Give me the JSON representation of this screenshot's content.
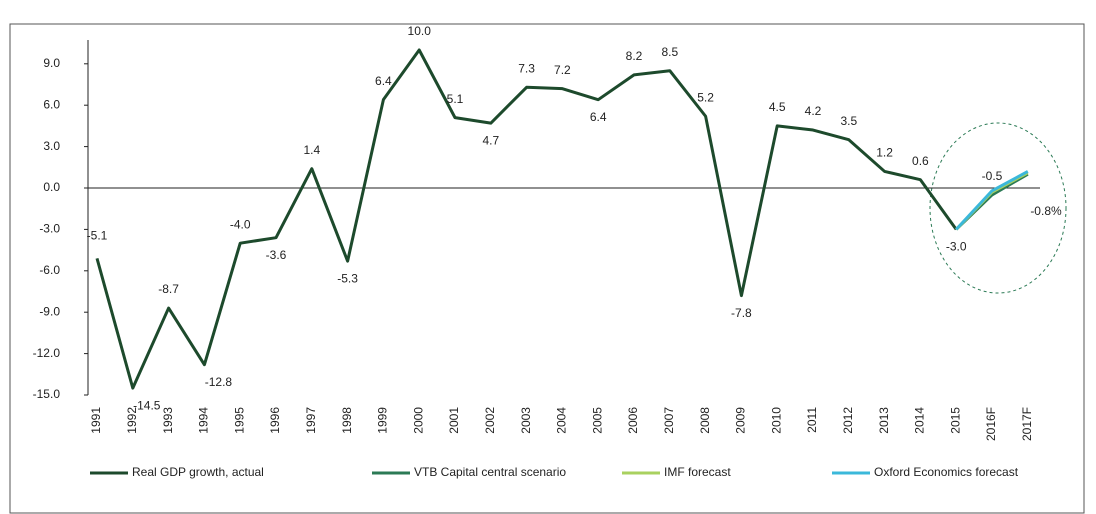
{
  "chart_data": {
    "type": "line",
    "categories": [
      "1991",
      "1992",
      "1993",
      "1994",
      "1995",
      "1996",
      "1997",
      "1998",
      "1999",
      "2000",
      "2001",
      "2002",
      "2003",
      "2004",
      "2005",
      "2006",
      "2007",
      "2008",
      "2009",
      "2010",
      "2011",
      "2012",
      "2013",
      "2014",
      "2015",
      "2016F",
      "2017F"
    ],
    "series": [
      {
        "name": "Real GDP growth, actual",
        "color": "#1d4a2c",
        "values": [
          -5.1,
          -14.5,
          -8.7,
          -12.8,
          -4.0,
          -3.6,
          1.4,
          -5.3,
          6.4,
          10.0,
          5.1,
          4.7,
          7.3,
          7.2,
          6.4,
          8.2,
          8.5,
          5.2,
          -7.8,
          4.5,
          4.2,
          3.5,
          1.2,
          0.6,
          -3.0,
          null,
          null
        ],
        "value_labels": [
          "-5.1",
          "-14.5",
          "-8.7",
          "-12.8",
          "-4.0",
          "-3.6",
          "1.4",
          "-5.3",
          "6.4",
          "10.0",
          "5.1",
          "4.7",
          "7.3",
          "7.2",
          "6.4",
          "8.2",
          "8.5",
          "5.2",
          "-7.8",
          "4.5",
          "4.2",
          "3.5",
          "1.2",
          "0.6",
          "-3.0",
          null,
          null
        ]
      },
      {
        "name": "VTB Capital central scenario",
        "color": "#2b7a55",
        "values": [
          null,
          null,
          null,
          null,
          null,
          null,
          null,
          null,
          null,
          null,
          null,
          null,
          null,
          null,
          null,
          null,
          null,
          null,
          null,
          null,
          null,
          null,
          null,
          null,
          -3.0,
          -0.5,
          1.0
        ],
        "value_labels": [
          null,
          null,
          null,
          null,
          null,
          null,
          null,
          null,
          null,
          null,
          null,
          null,
          null,
          null,
          null,
          null,
          null,
          null,
          null,
          null,
          null,
          null,
          null,
          null,
          null,
          "-0.5",
          null
        ]
      },
      {
        "name": "IMF forecast",
        "color": "#a9d15f",
        "values": [
          null,
          null,
          null,
          null,
          null,
          null,
          null,
          null,
          null,
          null,
          null,
          null,
          null,
          null,
          null,
          null,
          null,
          null,
          null,
          null,
          null,
          null,
          null,
          null,
          -3.0,
          -0.3,
          1.1
        ]
      },
      {
        "name": "Oxford Economics forecast",
        "color": "#3bb8da",
        "values": [
          null,
          null,
          null,
          null,
          null,
          null,
          null,
          null,
          null,
          null,
          null,
          null,
          null,
          null,
          null,
          null,
          null,
          null,
          null,
          null,
          null,
          null,
          null,
          null,
          -3.0,
          -0.2,
          1.2
        ]
      }
    ],
    "annotations": [
      "-0.8%"
    ],
    "ylim": [
      -15,
      10
    ],
    "yticks": [
      {
        "value": 9,
        "label": "9.0"
      },
      {
        "value": 6,
        "label": "6.0"
      },
      {
        "value": 3,
        "label": "3.0"
      },
      {
        "value": 0,
        "label": "0.0"
      },
      {
        "value": -3,
        "label": "-3.0"
      },
      {
        "value": -6,
        "label": "-6.0"
      },
      {
        "value": -9,
        "label": "-9.0"
      },
      {
        "value": -12,
        "label": "-12.0"
      },
      {
        "value": -15,
        "label": "-15.0"
      }
    ]
  }
}
